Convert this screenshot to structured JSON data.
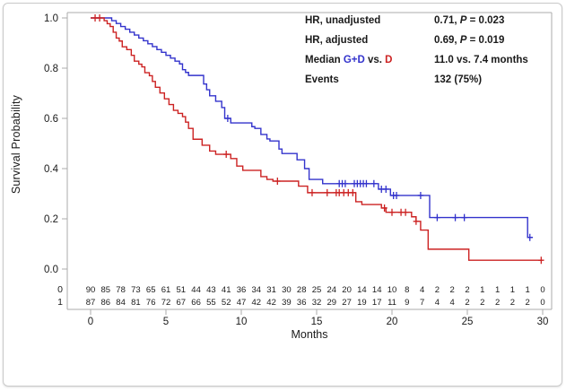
{
  "figure": {
    "y_axis_title": "Survival Probability",
    "x_axis_title": "Months"
  },
  "annotations": {
    "hr_unadjusted": {
      "label": "HR, unadjusted",
      "value_pre": "0.71, ",
      "p": "P",
      "value_post": " = 0.023"
    },
    "hr_adjusted": {
      "label": "HR, adjusted",
      "value_pre": "0.69, ",
      "p": "P",
      "value_post": " = 0.019"
    },
    "median": {
      "label_pre": "Median ",
      "group1": "G+D",
      "vs": " vs. ",
      "group2": "D",
      "value": "11.0 vs. 7.4 months"
    },
    "events": {
      "label": "Events",
      "value": "132 (75%)"
    }
  },
  "colors": {
    "group1_blue": "#3333CC",
    "group2_red": "#CC2222",
    "axis_grey": "#ababab",
    "text_black": "#1a1a1a"
  },
  "chart_data": {
    "type": "line",
    "subtype": "kaplan-meier-step",
    "title": "",
    "xlabel": "Months",
    "ylabel": "Survival Probability",
    "xlim": [
      0,
      30
    ],
    "ylim": [
      0.0,
      1.0
    ],
    "grid": false,
    "x_ticks": [
      0,
      5,
      10,
      15,
      20,
      25,
      30
    ],
    "y_ticks": [
      {
        "v": 1.0,
        "label": "1.0"
      },
      {
        "v": 0.8,
        "label": "0.8"
      },
      {
        "v": 0.6,
        "label": "0.6"
      },
      {
        "v": 0.4,
        "label": "0.4"
      },
      {
        "v": 0.2,
        "label": "0.2"
      },
      {
        "v": 0.0,
        "label": "0.0"
      }
    ],
    "series": [
      {
        "name": "G+D",
        "color": "#3333CC",
        "median_months": 11.0,
        "end_time": 29.35,
        "steps": [
          [
            0,
            1.0
          ],
          [
            1.4,
            0.989
          ],
          [
            1.7,
            0.978
          ],
          [
            2.0,
            0.966
          ],
          [
            2.3,
            0.955
          ],
          [
            2.6,
            0.943
          ],
          [
            2.9,
            0.932
          ],
          [
            3.2,
            0.92
          ],
          [
            3.5,
            0.909
          ],
          [
            3.8,
            0.897
          ],
          [
            4.1,
            0.886
          ],
          [
            4.4,
            0.874
          ],
          [
            4.7,
            0.863
          ],
          [
            5.0,
            0.851
          ],
          [
            5.3,
            0.84
          ],
          [
            5.6,
            0.828
          ],
          [
            5.9,
            0.817
          ],
          [
            6.1,
            0.794
          ],
          [
            6.3,
            0.783
          ],
          [
            6.5,
            0.771
          ],
          [
            7.5,
            0.737
          ],
          [
            7.7,
            0.714
          ],
          [
            7.9,
            0.69
          ],
          [
            8.3,
            0.668
          ],
          [
            8.7,
            0.643
          ],
          [
            8.9,
            0.6
          ],
          [
            9.3,
            0.582
          ],
          [
            10.7,
            0.567
          ],
          [
            10.9,
            0.56
          ],
          [
            11.3,
            0.536
          ],
          [
            11.7,
            0.518
          ],
          [
            11.9,
            0.51
          ],
          [
            12.5,
            0.478
          ],
          [
            12.7,
            0.46
          ],
          [
            13.7,
            0.435
          ],
          [
            14.2,
            0.4
          ],
          [
            14.5,
            0.357
          ],
          [
            15.4,
            0.34
          ],
          [
            19.1,
            0.318
          ],
          [
            19.9,
            0.293
          ],
          [
            22.5,
            0.205
          ],
          [
            29.0,
            0.126
          ]
        ],
        "censors": [
          [
            9.1,
            0.6
          ],
          [
            16.5,
            0.34
          ],
          [
            16.7,
            0.34
          ],
          [
            16.9,
            0.34
          ],
          [
            17.5,
            0.34
          ],
          [
            17.7,
            0.34
          ],
          [
            17.9,
            0.34
          ],
          [
            18.1,
            0.34
          ],
          [
            18.3,
            0.34
          ],
          [
            18.8,
            0.34
          ],
          [
            19.3,
            0.318
          ],
          [
            19.6,
            0.318
          ],
          [
            20.1,
            0.293
          ],
          [
            20.3,
            0.293
          ],
          [
            21.9,
            0.293
          ],
          [
            23.0,
            0.205
          ],
          [
            24.2,
            0.205
          ],
          [
            24.8,
            0.205
          ],
          [
            29.15,
            0.126
          ]
        ]
      },
      {
        "name": "D",
        "color": "#CC2222",
        "median_months": 7.4,
        "end_time": 29.95,
        "steps": [
          [
            0,
            1.0
          ],
          [
            0.9,
            0.989
          ],
          [
            1.1,
            0.977
          ],
          [
            1.3,
            0.966
          ],
          [
            1.5,
            0.943
          ],
          [
            1.7,
            0.92
          ],
          [
            1.9,
            0.908
          ],
          [
            2.1,
            0.885
          ],
          [
            2.4,
            0.874
          ],
          [
            2.7,
            0.851
          ],
          [
            2.9,
            0.828
          ],
          [
            3.2,
            0.816
          ],
          [
            3.4,
            0.805
          ],
          [
            3.6,
            0.782
          ],
          [
            3.9,
            0.77
          ],
          [
            4.1,
            0.747
          ],
          [
            4.3,
            0.724
          ],
          [
            4.6,
            0.701
          ],
          [
            4.9,
            0.678
          ],
          [
            5.2,
            0.655
          ],
          [
            5.5,
            0.632
          ],
          [
            5.8,
            0.62
          ],
          [
            6.1,
            0.607
          ],
          [
            6.3,
            0.585
          ],
          [
            6.5,
            0.56
          ],
          [
            6.8,
            0.517
          ],
          [
            7.4,
            0.493
          ],
          [
            7.9,
            0.47
          ],
          [
            8.3,
            0.457
          ],
          [
            9.3,
            0.44
          ],
          [
            9.7,
            0.41
          ],
          [
            10.1,
            0.393
          ],
          [
            11.3,
            0.368
          ],
          [
            11.7,
            0.357
          ],
          [
            12.1,
            0.35
          ],
          [
            13.8,
            0.33
          ],
          [
            14.4,
            0.304
          ],
          [
            17.6,
            0.268
          ],
          [
            18.0,
            0.257
          ],
          [
            19.3,
            0.243
          ],
          [
            19.6,
            0.226
          ],
          [
            21.3,
            0.208
          ],
          [
            21.6,
            0.19
          ],
          [
            21.9,
            0.155
          ],
          [
            22.4,
            0.079
          ],
          [
            25.1,
            0.035
          ]
        ],
        "censors": [
          [
            0.3,
            1.0
          ],
          [
            0.6,
            1.0
          ],
          [
            9.0,
            0.457
          ],
          [
            12.4,
            0.35
          ],
          [
            14.7,
            0.304
          ],
          [
            15.7,
            0.304
          ],
          [
            16.3,
            0.304
          ],
          [
            16.5,
            0.304
          ],
          [
            16.8,
            0.304
          ],
          [
            17.1,
            0.304
          ],
          [
            17.4,
            0.304
          ],
          [
            19.5,
            0.243
          ],
          [
            20.0,
            0.226
          ],
          [
            20.6,
            0.226
          ],
          [
            20.9,
            0.226
          ],
          [
            21.6,
            0.19
          ],
          [
            29.9,
            0.035
          ]
        ]
      }
    ],
    "risk_table": {
      "row_labels": [
        "0",
        "1"
      ],
      "times": [
        0,
        1,
        2,
        3,
        4,
        5,
        6,
        7,
        8,
        9,
        10,
        11,
        12,
        13,
        14,
        15,
        16,
        17,
        18,
        19,
        20,
        21,
        22,
        23,
        24,
        25,
        26,
        27,
        28,
        29,
        30
      ],
      "rows": [
        [
          90,
          85,
          78,
          73,
          65,
          61,
          51,
          44,
          43,
          41,
          36,
          34,
          31,
          30,
          28,
          25,
          24,
          20,
          14,
          14,
          10,
          8,
          4,
          2,
          2,
          2,
          1,
          1,
          1,
          1,
          0
        ],
        [
          87,
          86,
          84,
          81,
          76,
          72,
          67,
          66,
          55,
          52,
          47,
          42,
          42,
          39,
          36,
          32,
          29,
          27,
          19,
          17,
          11,
          9,
          7,
          4,
          4,
          2,
          2,
          2,
          2,
          2,
          0
        ]
      ]
    }
  }
}
